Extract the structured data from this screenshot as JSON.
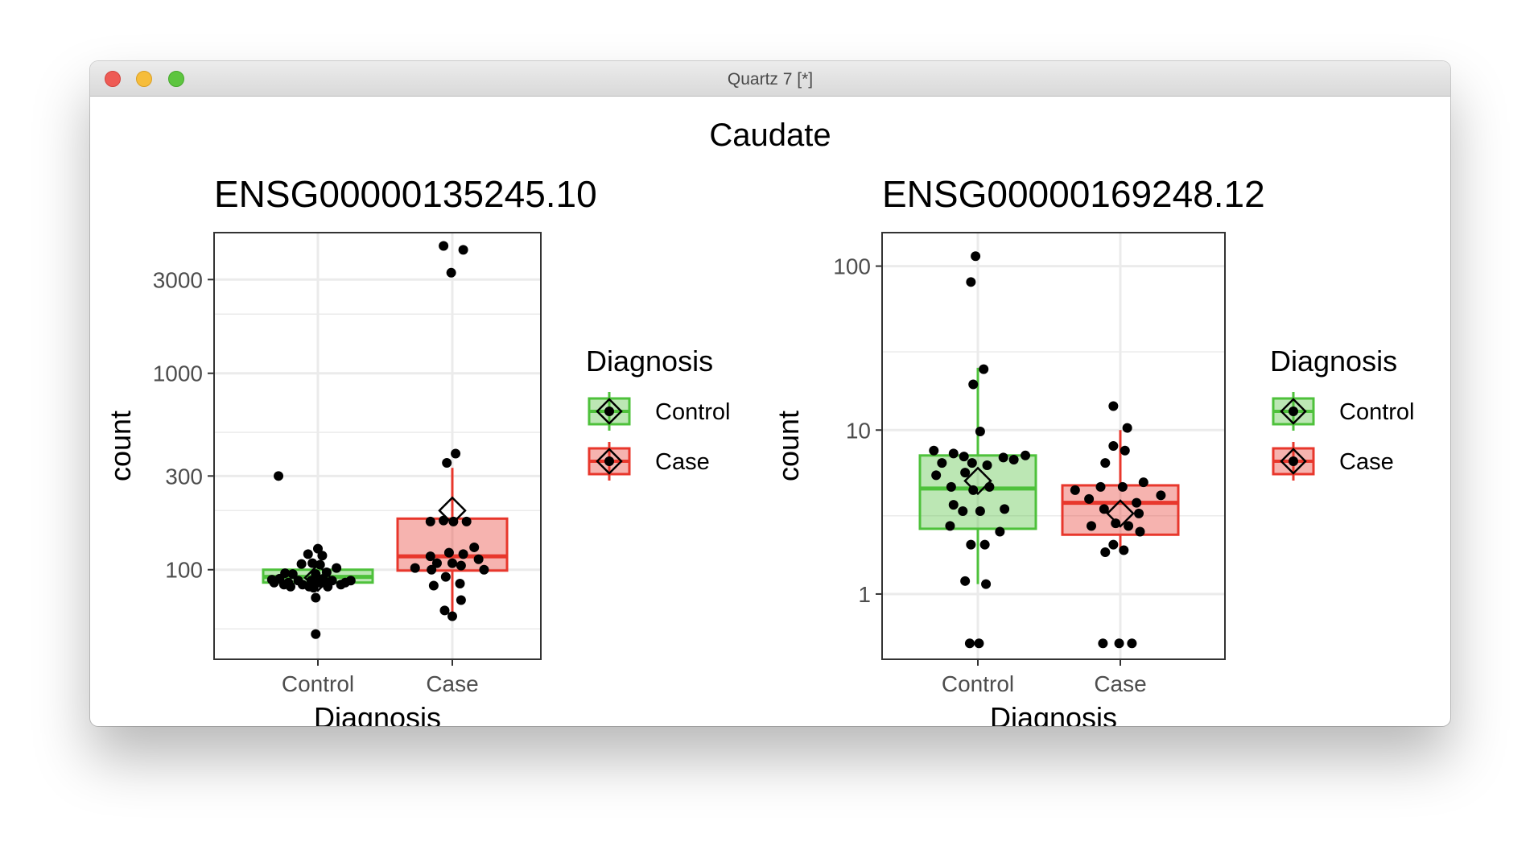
{
  "window": {
    "title": "Quartz 7 [*]"
  },
  "figure": {
    "title": "Caudate"
  },
  "colors": {
    "Control": "#4ec13b",
    "Case": "#e8372c",
    "grid": "#ebebeb"
  },
  "chart_data": [
    {
      "type": "boxplot",
      "title": "ENSG00000135245.10",
      "xlabel": "Diagnosis",
      "ylabel": "count",
      "yscale": "log10",
      "ylim": [
        35,
        5200
      ],
      "yticks": [
        100,
        300,
        1000,
        3000
      ],
      "ytick_labels": [
        "100",
        "300",
        "1000",
        "3000"
      ],
      "yminor": [
        50,
        200,
        500,
        2000
      ],
      "categories": [
        "Control",
        "Case"
      ],
      "legend": {
        "title": "Diagnosis",
        "entries": [
          "Control",
          "Case"
        ],
        "position": "right"
      },
      "groups": [
        {
          "name": "Control",
          "box": {
            "q1": 86,
            "median": 92,
            "q3": 100,
            "whisker_low": 86,
            "whisker_high": 100
          },
          "mean": 91,
          "points": [
            {
              "x": -0.36,
              "y": 300
            },
            {
              "x": 0.0,
              "y": 128
            },
            {
              "x": -0.09,
              "y": 120
            },
            {
              "x": 0.04,
              "y": 118
            },
            {
              "x": -0.15,
              "y": 107
            },
            {
              "x": -0.05,
              "y": 108
            },
            {
              "x": 0.02,
              "y": 106
            },
            {
              "x": 0.17,
              "y": 102
            },
            {
              "x": -0.3,
              "y": 96
            },
            {
              "x": -0.23,
              "y": 95
            },
            {
              "x": -0.02,
              "y": 95
            },
            {
              "x": 0.08,
              "y": 97
            },
            {
              "x": -0.35,
              "y": 90
            },
            {
              "x": -0.18,
              "y": 88
            },
            {
              "x": -0.06,
              "y": 88
            },
            {
              "x": 0.05,
              "y": 90
            },
            {
              "x": 0.13,
              "y": 88
            },
            {
              "x": 0.3,
              "y": 88
            },
            {
              "x": -0.42,
              "y": 89
            },
            {
              "x": -0.27,
              "y": 86
            },
            {
              "x": -0.14,
              "y": 84
            },
            {
              "x": 0.01,
              "y": 86
            },
            {
              "x": 0.21,
              "y": 84
            },
            {
              "x": -0.4,
              "y": 86
            },
            {
              "x": -0.31,
              "y": 84
            },
            {
              "x": -0.08,
              "y": 82
            },
            {
              "x": 0.09,
              "y": 82
            },
            {
              "x": 0.25,
              "y": 86
            },
            {
              "x": -0.25,
              "y": 82
            },
            {
              "x": -0.04,
              "y": 81
            },
            {
              "x": -0.02,
              "y": 72
            },
            {
              "x": -0.02,
              "y": 47
            }
          ]
        },
        {
          "name": "Case",
          "box": {
            "q1": 99,
            "median": 117,
            "q3": 182,
            "whisker_low": 60,
            "whisker_high": 330
          },
          "mean": 200,
          "points": [
            {
              "x": -0.08,
              "y": 4450
            },
            {
              "x": 0.1,
              "y": 4250
            },
            {
              "x": -0.01,
              "y": 3250
            },
            {
              "x": 0.03,
              "y": 390
            },
            {
              "x": -0.05,
              "y": 350
            },
            {
              "x": -0.2,
              "y": 176
            },
            {
              "x": -0.08,
              "y": 178
            },
            {
              "x": 0.01,
              "y": 176
            },
            {
              "x": 0.13,
              "y": 176
            },
            {
              "x": 0.2,
              "y": 130
            },
            {
              "x": 0.1,
              "y": 120
            },
            {
              "x": -0.03,
              "y": 122
            },
            {
              "x": -0.2,
              "y": 117
            },
            {
              "x": 0.24,
              "y": 113
            },
            {
              "x": -0.14,
              "y": 108
            },
            {
              "x": 0.0,
              "y": 108
            },
            {
              "x": 0.08,
              "y": 105
            },
            {
              "x": -0.34,
              "y": 102
            },
            {
              "x": -0.19,
              "y": 100
            },
            {
              "x": 0.29,
              "y": 100
            },
            {
              "x": -0.06,
              "y": 92
            },
            {
              "x": 0.07,
              "y": 85
            },
            {
              "x": -0.17,
              "y": 83
            },
            {
              "x": 0.08,
              "y": 70
            },
            {
              "x": -0.07,
              "y": 62
            },
            {
              "x": 0.0,
              "y": 58
            }
          ]
        }
      ]
    },
    {
      "type": "boxplot",
      "title": "ENSG00000169248.12",
      "xlabel": "Diagnosis",
      "ylabel": "count",
      "yscale": "log10",
      "ylim": [
        0.4,
        160
      ],
      "yticks": [
        1,
        10,
        100
      ],
      "ytick_labels": [
        "1",
        "10",
        "100"
      ],
      "yminor": [
        3,
        30
      ],
      "categories": [
        "Control",
        "Case"
      ],
      "legend": {
        "title": "Diagnosis",
        "entries": [
          "Control",
          "Case"
        ],
        "position": "right"
      },
      "groups": [
        {
          "name": "Control",
          "box": {
            "q1": 2.5,
            "median": 4.4,
            "q3": 7.0,
            "whisker_low": 1.15,
            "whisker_high": 24
          },
          "mean": 4.9,
          "points": [
            {
              "x": -0.02,
              "y": 115
            },
            {
              "x": -0.06,
              "y": 80
            },
            {
              "x": 0.05,
              "y": 23.5
            },
            {
              "x": -0.04,
              "y": 19
            },
            {
              "x": 0.02,
              "y": 9.8
            },
            {
              "x": -0.38,
              "y": 7.5
            },
            {
              "x": -0.21,
              "y": 7.2
            },
            {
              "x": -0.12,
              "y": 6.9
            },
            {
              "x": 0.22,
              "y": 6.8
            },
            {
              "x": 0.31,
              "y": 6.6
            },
            {
              "x": 0.41,
              "y": 7.0
            },
            {
              "x": -0.31,
              "y": 6.3
            },
            {
              "x": -0.05,
              "y": 6.3
            },
            {
              "x": 0.08,
              "y": 6.1
            },
            {
              "x": -0.36,
              "y": 5.3
            },
            {
              "x": -0.11,
              "y": 5.5
            },
            {
              "x": -0.23,
              "y": 4.5
            },
            {
              "x": -0.04,
              "y": 4.3
            },
            {
              "x": 0.1,
              "y": 4.5
            },
            {
              "x": -0.21,
              "y": 3.5
            },
            {
              "x": -0.13,
              "y": 3.2
            },
            {
              "x": 0.02,
              "y": 3.2
            },
            {
              "x": 0.23,
              "y": 3.3
            },
            {
              "x": -0.24,
              "y": 2.6
            },
            {
              "x": 0.19,
              "y": 2.4
            },
            {
              "x": -0.06,
              "y": 2.0
            },
            {
              "x": 0.06,
              "y": 2.0
            },
            {
              "x": -0.11,
              "y": 1.2
            },
            {
              "x": 0.07,
              "y": 1.15
            },
            {
              "x": -0.07,
              "y": 0.5
            },
            {
              "x": 0.01,
              "y": 0.5
            }
          ]
        },
        {
          "name": "Case",
          "box": {
            "q1": 2.3,
            "median": 3.6,
            "q3": 4.6,
            "whisker_low": 1.8,
            "whisker_high": 10
          },
          "mean": 3.1,
          "points": [
            {
              "x": -0.06,
              "y": 14
            },
            {
              "x": 0.06,
              "y": 10.3
            },
            {
              "x": -0.06,
              "y": 8
            },
            {
              "x": 0.04,
              "y": 7.5
            },
            {
              "x": -0.13,
              "y": 6.3
            },
            {
              "x": 0.2,
              "y": 4.8
            },
            {
              "x": -0.39,
              "y": 4.3
            },
            {
              "x": -0.17,
              "y": 4.5
            },
            {
              "x": 0.02,
              "y": 4.5
            },
            {
              "x": 0.35,
              "y": 4.0
            },
            {
              "x": -0.27,
              "y": 3.8
            },
            {
              "x": 0.14,
              "y": 3.6
            },
            {
              "x": -0.14,
              "y": 3.3
            },
            {
              "x": 0.16,
              "y": 3.1
            },
            {
              "x": -0.25,
              "y": 2.6
            },
            {
              "x": -0.04,
              "y": 2.7
            },
            {
              "x": 0.07,
              "y": 2.6
            },
            {
              "x": 0.17,
              "y": 2.4
            },
            {
              "x": -0.06,
              "y": 2.0
            },
            {
              "x": -0.13,
              "y": 1.8
            },
            {
              "x": 0.03,
              "y": 1.85
            },
            {
              "x": -0.15,
              "y": 0.5
            },
            {
              "x": -0.01,
              "y": 0.5
            },
            {
              "x": 0.1,
              "y": 0.5
            }
          ]
        }
      ]
    }
  ]
}
